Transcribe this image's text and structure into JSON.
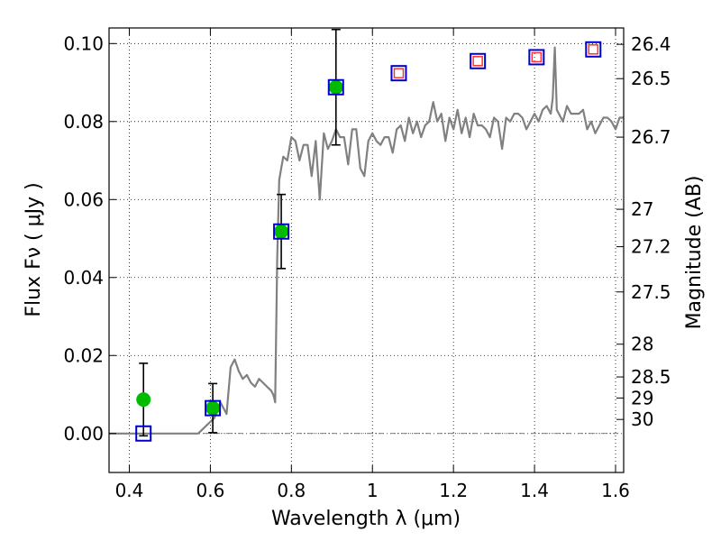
{
  "chart_data": {
    "type": "scatter",
    "xlabel": "Wavelength  λ (μm)",
    "ylabel": "Flux  Fν  ( μJy )",
    "ylabel_right": "Magnitude (AB)",
    "xlim": [
      0.35,
      1.62
    ],
    "ylim": [
      -0.01,
      0.104
    ],
    "grid": true,
    "xticks": [
      0.4,
      0.6,
      0.8,
      1.0,
      1.2,
      1.4,
      1.6
    ],
    "xtick_labels": [
      "0.4",
      "0.6",
      "0.8",
      "1",
      "1.2",
      "1.4",
      "1.6"
    ],
    "yticks": [
      0.0,
      0.02,
      0.04,
      0.06,
      0.08,
      0.1
    ],
    "ytick_labels": [
      "0.00",
      "0.02",
      "0.04",
      "0.06",
      "0.08",
      "0.10"
    ],
    "mag_ticks": [
      {
        "label": "26.4",
        "flux": 0.0998
      },
      {
        "label": "26.5",
        "flux": 0.091
      },
      {
        "label": "26.7",
        "flux": 0.076
      },
      {
        "label": "27",
        "flux": 0.0575
      },
      {
        "label": "27.2",
        "flux": 0.0479
      },
      {
        "label": "27.5",
        "flux": 0.0363
      },
      {
        "label": "28",
        "flux": 0.0229
      },
      {
        "label": "28.5",
        "flux": 0.0145
      },
      {
        "label": "29",
        "flux": 0.0091
      },
      {
        "label": "30",
        "flux": 0.0036
      }
    ],
    "series": [
      {
        "kind": "line",
        "color": "#808080",
        "x": [
          0.35,
          0.4,
          0.45,
          0.5,
          0.55,
          0.57,
          0.59,
          0.61,
          0.625,
          0.635,
          0.64,
          0.65,
          0.66,
          0.67,
          0.68,
          0.69,
          0.7,
          0.71,
          0.72,
          0.73,
          0.74,
          0.75,
          0.755,
          0.758,
          0.76,
          0.765,
          0.77,
          0.78,
          0.79,
          0.8,
          0.81,
          0.82,
          0.83,
          0.84,
          0.85,
          0.86,
          0.87,
          0.88,
          0.89,
          0.9,
          0.91,
          0.92,
          0.93,
          0.94,
          0.95,
          0.96,
          0.97,
          0.98,
          0.99,
          1.0,
          1.01,
          1.02,
          1.03,
          1.04,
          1.05,
          1.06,
          1.07,
          1.08,
          1.09,
          1.1,
          1.11,
          1.12,
          1.13,
          1.14,
          1.15,
          1.16,
          1.17,
          1.18,
          1.19,
          1.2,
          1.21,
          1.22,
          1.23,
          1.24,
          1.25,
          1.26,
          1.27,
          1.28,
          1.29,
          1.3,
          1.31,
          1.32,
          1.33,
          1.34,
          1.35,
          1.36,
          1.37,
          1.38,
          1.39,
          1.4,
          1.41,
          1.42,
          1.43,
          1.44,
          1.445,
          1.45,
          1.455,
          1.46,
          1.47,
          1.48,
          1.49,
          1.5,
          1.51,
          1.52,
          1.53,
          1.54,
          1.55,
          1.56,
          1.57,
          1.58,
          1.59,
          1.6,
          1.61,
          1.62
        ],
        "y": [
          0.0,
          0.0,
          0.0,
          0.0,
          0.0,
          0.0,
          0.002,
          0.004,
          0.008,
          0.006,
          0.005,
          0.017,
          0.019,
          0.016,
          0.014,
          0.015,
          0.013,
          0.012,
          0.014,
          0.013,
          0.012,
          0.011,
          0.01,
          0.009,
          0.008,
          0.045,
          0.065,
          0.071,
          0.07,
          0.076,
          0.075,
          0.07,
          0.074,
          0.074,
          0.066,
          0.075,
          0.06,
          0.077,
          0.073,
          0.075,
          0.078,
          0.076,
          0.076,
          0.069,
          0.078,
          0.078,
          0.068,
          0.066,
          0.075,
          0.077,
          0.075,
          0.074,
          0.076,
          0.076,
          0.072,
          0.078,
          0.079,
          0.075,
          0.081,
          0.077,
          0.08,
          0.076,
          0.079,
          0.08,
          0.085,
          0.08,
          0.082,
          0.075,
          0.081,
          0.078,
          0.083,
          0.077,
          0.081,
          0.076,
          0.082,
          0.079,
          0.079,
          0.078,
          0.076,
          0.081,
          0.08,
          0.073,
          0.081,
          0.08,
          0.082,
          0.082,
          0.081,
          0.078,
          0.08,
          0.082,
          0.08,
          0.083,
          0.084,
          0.082,
          0.086,
          0.099,
          0.083,
          0.082,
          0.08,
          0.084,
          0.082,
          0.082,
          0.082,
          0.083,
          0.078,
          0.08,
          0.077,
          0.079,
          0.081,
          0.081,
          0.08,
          0.078,
          0.081,
          0.081
        ]
      },
      {
        "kind": "points-with-errors",
        "marker": "circle",
        "color": "#00bb00",
        "x": [
          0.435,
          0.606,
          0.775,
          0.91
        ],
        "y": [
          0.0087,
          0.0065,
          0.0518,
          0.0888
        ],
        "yerr": [
          0.0093,
          0.0063,
          0.0095,
          0.0148
        ]
      },
      {
        "kind": "points",
        "marker": "open-square",
        "color": "#0000cc",
        "x": [
          0.435,
          0.606,
          0.775,
          0.91,
          1.065,
          1.26,
          1.405,
          1.545
        ],
        "y": [
          0.0,
          0.0065,
          0.0518,
          0.0888,
          0.0924,
          0.0955,
          0.0965,
          0.0985
        ]
      },
      {
        "kind": "points",
        "marker": "small-open-square",
        "color": "#ff3333",
        "x": [
          1.065,
          1.26,
          1.405,
          1.545
        ],
        "y": [
          0.0924,
          0.0955,
          0.0965,
          0.0985
        ]
      }
    ],
    "zero_line": {
      "y": 0.0,
      "style": "dash-dot",
      "color": "#555555"
    }
  }
}
